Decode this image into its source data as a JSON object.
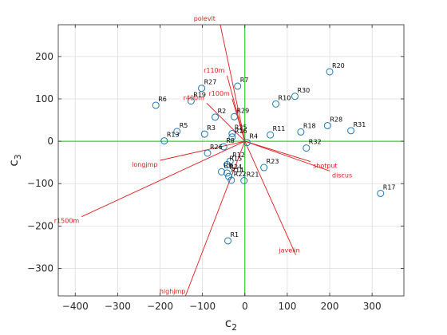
{
  "chart_data": {
    "type": "scatter",
    "subtype": "biplot",
    "xlabel": "c",
    "xlabel_sub": "2",
    "ylabel": "c",
    "ylabel_sub": "3",
    "xlim": [
      -440,
      375
    ],
    "ylim": [
      -365,
      275
    ],
    "xticks": [
      -400,
      -300,
      -200,
      -100,
      0,
      100,
      200,
      300
    ],
    "yticks": [
      -300,
      -200,
      -100,
      0,
      100,
      200
    ],
    "grid": true,
    "colors": {
      "loading": "#e41a1c",
      "point": "#1f77b4",
      "zero_line": "#00cc00",
      "grid": "#dddddd",
      "axes": "#262626"
    },
    "loadings": [
      {
        "name": "polevlt",
        "x": -58,
        "y": 275
      },
      {
        "name": "r110m",
        "x": -42,
        "y": 155
      },
      {
        "name": "r100m",
        "x": -30,
        "y": 100
      },
      {
        "name": "r400m",
        "x": -90,
        "y": 90
      },
      {
        "name": "longjmp",
        "x": -200,
        "y": -45
      },
      {
        "name": "r1500m",
        "x": -385,
        "y": -178
      },
      {
        "name": "highjmp",
        "x": -140,
        "y": -365
      },
      {
        "name": "shotput",
        "x": 155,
        "y": -48
      },
      {
        "name": "discus",
        "x": 200,
        "y": -70
      },
      {
        "name": "javelin",
        "x": 120,
        "y": -268
      }
    ],
    "points": [
      {
        "name": "R1",
        "x": -40,
        "y": -235
      },
      {
        "name": "R2",
        "x": -70,
        "y": 57
      },
      {
        "name": "R3",
        "x": -95,
        "y": 17
      },
      {
        "name": "R4",
        "x": 5,
        "y": -3
      },
      {
        "name": "R5",
        "x": -160,
        "y": 23
      },
      {
        "name": "R6",
        "x": -210,
        "y": 85
      },
      {
        "name": "R7",
        "x": -17,
        "y": 130
      },
      {
        "name": "R8",
        "x": -50,
        "y": -13
      },
      {
        "name": "R9",
        "x": -55,
        "y": -72
      },
      {
        "name": "R10",
        "x": 73,
        "y": 88
      },
      {
        "name": "R11",
        "x": 60,
        "y": 15
      },
      {
        "name": "R12",
        "x": -35,
        "y": -47
      },
      {
        "name": "R13",
        "x": -190,
        "y": 1
      },
      {
        "name": "R14",
        "x": -38,
        "y": -83
      },
      {
        "name": "R15",
        "x": -42,
        "y": -55
      },
      {
        "name": "R16",
        "x": -30,
        "y": 10
      },
      {
        "name": "R17",
        "x": 320,
        "y": -123
      },
      {
        "name": "R18",
        "x": 132,
        "y": 22
      },
      {
        "name": "R19",
        "x": -127,
        "y": 95
      },
      {
        "name": "R20",
        "x": 200,
        "y": 164
      },
      {
        "name": "R21",
        "x": -2,
        "y": -93
      },
      {
        "name": "R22",
        "x": -32,
        "y": -92
      },
      {
        "name": "R23",
        "x": 45,
        "y": -62
      },
      {
        "name": "R24",
        "x": -42,
        "y": -75
      },
      {
        "name": "R25",
        "x": -30,
        "y": 18
      },
      {
        "name": "R26",
        "x": -88,
        "y": -28
      },
      {
        "name": "R27",
        "x": -102,
        "y": 125
      },
      {
        "name": "R28",
        "x": 195,
        "y": 37
      },
      {
        "name": "R29",
        "x": -25,
        "y": 58
      },
      {
        "name": "R30",
        "x": 118,
        "y": 106
      },
      {
        "name": "R31",
        "x": 250,
        "y": 25
      },
      {
        "name": "R32",
        "x": 145,
        "y": -16
      }
    ]
  }
}
